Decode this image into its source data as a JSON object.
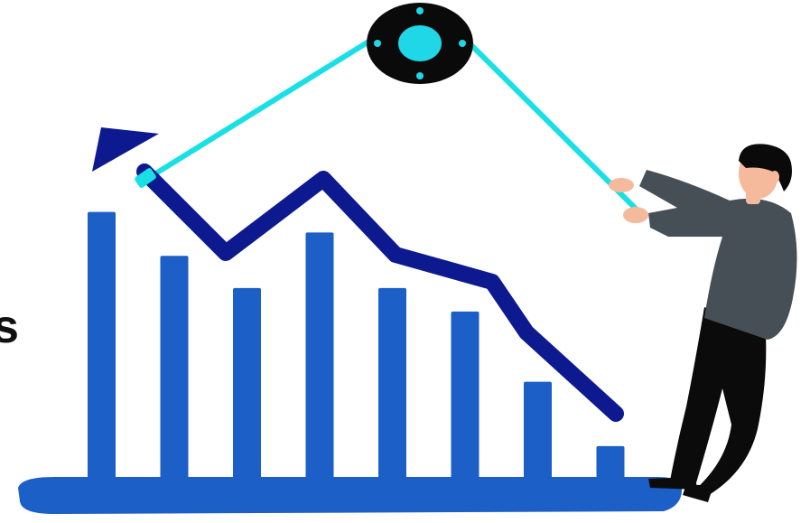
{
  "illustration": {
    "side_text": "s",
    "bar_levels": [
      0.93,
      0.78,
      0.67,
      0.86,
      0.67,
      0.59,
      0.35,
      0.13
    ],
    "colors": {
      "bars": "#1b5fc7",
      "trend_line": "#0d1a8f",
      "rope": "#18e0e6",
      "pulley_body": "#0a0a0a",
      "pulley_hub": "#1fd7e6",
      "shirt": "#474f56",
      "pants": "#0b0b0b",
      "skin": "#f5b99b",
      "hair": "#0a0a0a"
    },
    "icons": [
      "pulley-icon",
      "arrow-head-icon",
      "businessman-figure"
    ]
  }
}
